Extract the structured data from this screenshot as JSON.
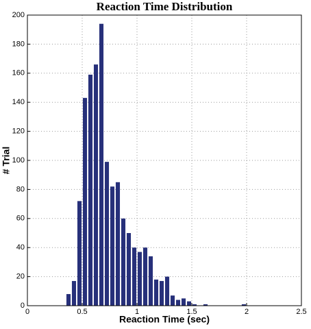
{
  "chart_data": {
    "type": "histogram",
    "title": "Reaction Time Distribution",
    "x_label": "Reaction Time (sec)",
    "y_label": "# Trial",
    "color": "#27307a",
    "bins": [
      0.35,
      0.4,
      0.45,
      0.5,
      0.55,
      0.6,
      0.65,
      0.7,
      0.75,
      0.8,
      0.85,
      0.9,
      0.95,
      1.0,
      1.05,
      1.1,
      1.15,
      1.2,
      1.25,
      1.3,
      1.35,
      1.4,
      1.45,
      1.5,
      1.55,
      1.6,
      1.65,
      1.7,
      1.75,
      1.8,
      1.85,
      1.9,
      1.95,
      2.0
    ],
    "values": [
      8,
      17,
      72,
      143,
      159,
      166,
      194,
      99,
      82,
      85,
      60,
      50,
      40,
      37,
      40,
      34,
      18,
      17,
      20,
      7,
      4,
      5,
      3,
      1,
      0,
      1,
      0,
      0,
      0,
      0,
      0,
      0,
      1
    ],
    "xlim": [
      0,
      2.5
    ],
    "ylim": [
      0,
      200
    ],
    "xticks": [
      0,
      0.5,
      1,
      1.5,
      2,
      2.5
    ],
    "yticks": [
      0,
      20,
      40,
      60,
      80,
      100,
      120,
      140,
      160,
      180,
      200
    ],
    "grid": true
  }
}
